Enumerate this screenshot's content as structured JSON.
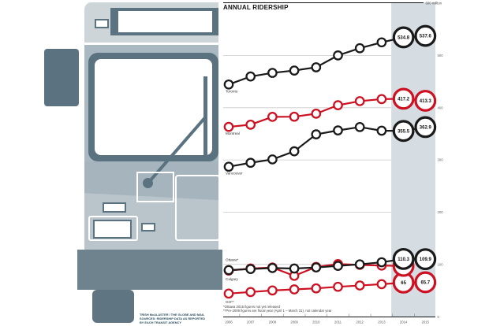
{
  "title": "ANNUAL RIDERSHIP",
  "footnotes": [
    "*Ottawa 2015 figures not yet released",
    "**Pre-2009 figures are fiscal year (April 1 – March 31), not calendar year"
  ],
  "credit": {
    "line1": "TRISH McALASTER / THE GLOBE AND MAIL",
    "line2": "SOURCES: RIDERSHIP DATA AS REPORTED",
    "line3": "BY EACH TRANSIT AGENCY"
  },
  "colors": {
    "series_black": "#1a1a1a",
    "series_red": "#cc1122",
    "band": "#d5dde2",
    "grid": "#cccccc",
    "axis": "#111111",
    "tick_label": "#666666",
    "year_label": "#555555",
    "series_label": "#333333",
    "bus_dark_slate": "#5b7280",
    "bus_light_gray": "#cdd5d9",
    "bus_mid_gray": "#aab9c1",
    "bus_bumper": "#6e838d"
  },
  "illustration": {
    "name": "bus-front-illustration"
  },
  "chart_data": {
    "type": "line",
    "title": "ANNUAL RIDERSHIP",
    "y_top_label": "600 million",
    "ylabel": "",
    "xlabel": "",
    "ylim": [
      0,
      600
    ],
    "yticks_labeled": [
      500,
      400,
      300,
      200,
      100,
      0
    ],
    "grid": true,
    "highlight_band": {
      "from": 2014,
      "to": 2015
    },
    "x": [
      2006,
      2007,
      2008,
      2009,
      2010,
      2011,
      2012,
      2013,
      2014,
      2015
    ],
    "series": [
      {
        "name": "Toronto",
        "color": "black",
        "label_dy": 10,
        "values": [
          444.5,
          459.8,
          466.7,
          471.2,
          477.4,
          500.2,
          514.0,
          525.2,
          534.8,
          537.6
        ],
        "end_labels": [
          "534.8",
          "537.6"
        ]
      },
      {
        "name": "Montreal",
        "color": "red",
        "label_dy": 10,
        "values": [
          363.3,
          367.5,
          382.5,
          382.8,
          388.6,
          404.8,
          412.6,
          416.5,
          417.2,
          413.3
        ],
        "end_labels": [
          "417.2",
          "413.3"
        ]
      },
      {
        "name": "Vancouver",
        "color": "black",
        "label_dy": 10,
        "values": [
          287.0,
          294.5,
          301.0,
          316.5,
          349.0,
          356.5,
          363.0,
          356.0,
          355.5,
          362.9
        ],
        "end_labels": [
          "355.5",
          "362.9"
        ]
      },
      {
        "name": "GO**",
        "color": "red",
        "label_dy": 12,
        "values": [
          44.0,
          47.0,
          50.0,
          52.0,
          54.0,
          57.0,
          59.5,
          62.0,
          65.0,
          65.7
        ],
        "end_labels": [
          "65",
          "65.7"
        ]
      },
      {
        "name": "Ottawa*",
        "color": "red",
        "label_dy": -12,
        "values": [
          88.0,
          92.0,
          94.0,
          78.0,
          95.0,
          100.5,
          99.0,
          97.6,
          97.1,
          null
        ],
        "end_labels": [
          "97.1",
          null
        ]
      },
      {
        "name": "Calgary",
        "color": "black",
        "label_dy": 13,
        "values": [
          89.0,
          91.0,
          93.0,
          92.0,
          94.0,
          97.0,
          100.0,
          104.0,
          110.3,
          109.9
        ],
        "end_labels": [
          "110.3",
          "109.9"
        ]
      }
    ]
  }
}
